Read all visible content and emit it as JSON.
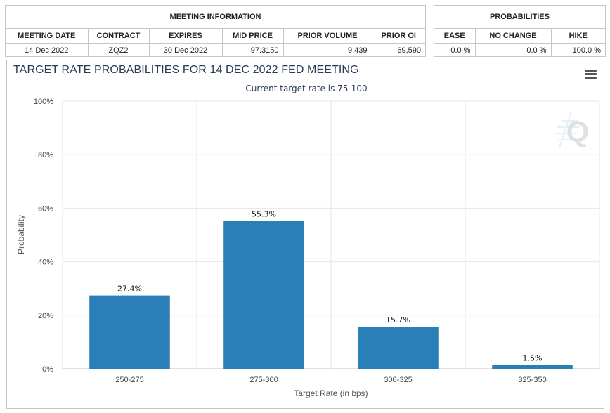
{
  "meeting_info": {
    "title": "MEETING INFORMATION",
    "headers": [
      "MEETING DATE",
      "CONTRACT",
      "EXPIRES",
      "MID PRICE",
      "PRIOR VOLUME",
      "PRIOR OI"
    ],
    "row": [
      "14 Dec 2022",
      "ZQZ2",
      "30 Dec 2022",
      "97.3150",
      "9,439",
      "69,590"
    ]
  },
  "probabilities": {
    "title": "PROBABILITIES",
    "headers": [
      "EASE",
      "NO CHANGE",
      "HIKE"
    ],
    "row": [
      "0.0 %",
      "0.0 %",
      "100.0 %"
    ]
  },
  "chart": {
    "menu_icon": "hamburger-menu-icon",
    "watermark_icon": "q-logo-watermark-icon",
    "bar_color": "#2b7fb8"
  },
  "chart_data": {
    "type": "bar",
    "title": "TARGET RATE PROBABILITIES FOR 14 DEC 2022 FED MEETING",
    "subtitle": "Current target rate is 75-100",
    "xlabel": "Target Rate (in bps)",
    "ylabel": "Probability",
    "categories": [
      "250-275",
      "275-300",
      "300-325",
      "325-350"
    ],
    "values": [
      27.4,
      55.3,
      15.7,
      1.5
    ],
    "data_labels": [
      "27.4%",
      "55.3%",
      "15.7%",
      "1.5%"
    ],
    "ylim": [
      0,
      100
    ],
    "yticks": [
      "0%",
      "20%",
      "40%",
      "60%",
      "80%",
      "100%"
    ],
    "grid": true,
    "legend": "none"
  }
}
